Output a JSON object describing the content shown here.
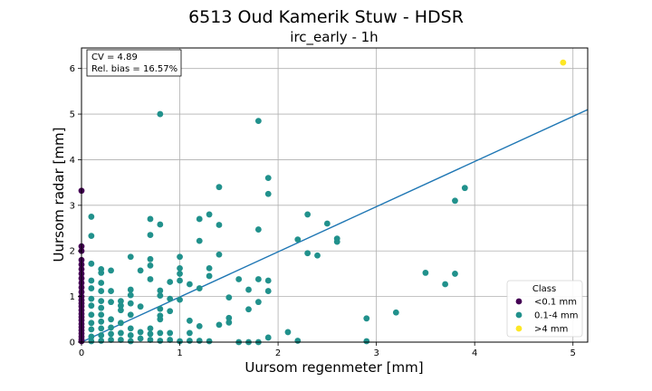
{
  "chart_data": {
    "type": "scatter",
    "title": "6513 Oud Kamerik Stuw - HDSR",
    "subtitle": "irc_early - 1h",
    "xlabel": "Uursom regenmeter [mm]",
    "ylabel": "Uursom radar [mm]",
    "xlim": [
      0,
      5.15
    ],
    "ylim": [
      0,
      6.45
    ],
    "xticks": [
      "0",
      "1",
      "2",
      "3",
      "4",
      "5"
    ],
    "yticks": [
      "0",
      "1",
      "2",
      "3",
      "4",
      "5",
      "6"
    ],
    "grid": true,
    "stats": {
      "cv": "CV = 4.89",
      "bias": "Rel. bias = 16.57%"
    },
    "fit_line": {
      "slope": 0.99,
      "intercept": 0.0,
      "color": "#1f77b4"
    },
    "legend": {
      "title": "Class",
      "position": "lower-right",
      "entries": [
        {
          "label": "<0.1 mm",
          "color": "#440154"
        },
        {
          "label": "0.1-4 mm",
          "color": "#21918c"
        },
        {
          "label": ">4 mm",
          "color": "#fde725"
        }
      ]
    },
    "series": [
      {
        "name": "<0.1 mm",
        "color": "#440154",
        "points": [
          [
            0,
            3.32
          ],
          [
            0,
            2.1
          ],
          [
            0,
            2.0
          ],
          [
            0,
            1.8
          ],
          [
            0,
            1.7
          ],
          [
            0,
            1.6
          ],
          [
            0,
            1.5
          ],
          [
            0,
            1.4
          ],
          [
            0,
            1.3
          ],
          [
            0,
            1.2
          ],
          [
            0,
            1.1
          ],
          [
            0,
            1.0
          ],
          [
            0,
            0.92
          ],
          [
            0,
            0.85
          ],
          [
            0,
            0.78
          ],
          [
            0,
            0.7
          ],
          [
            0,
            0.62
          ],
          [
            0,
            0.55
          ],
          [
            0,
            0.48
          ],
          [
            0,
            0.4
          ],
          [
            0,
            0.33
          ],
          [
            0,
            0.26
          ],
          [
            0,
            0.19
          ],
          [
            0,
            0.12
          ],
          [
            0,
            0.06
          ],
          [
            0,
            0.02
          ]
        ]
      },
      {
        "name": "0.1-4 mm",
        "color": "#21918c",
        "points": [
          [
            0.1,
            2.75
          ],
          [
            0.1,
            2.33
          ],
          [
            0.1,
            1.72
          ],
          [
            0.1,
            1.35
          ],
          [
            0.1,
            1.18
          ],
          [
            0.1,
            0.95
          ],
          [
            0.1,
            0.8
          ],
          [
            0.1,
            0.6
          ],
          [
            0.1,
            0.42
          ],
          [
            0.1,
            0.28
          ],
          [
            0.1,
            0.12
          ],
          [
            0.1,
            0.02
          ],
          [
            0.2,
            1.6
          ],
          [
            0.2,
            1.52
          ],
          [
            0.2,
            1.3
          ],
          [
            0.2,
            1.12
          ],
          [
            0.2,
            0.9
          ],
          [
            0.2,
            0.75
          ],
          [
            0.2,
            0.6
          ],
          [
            0.2,
            0.45
          ],
          [
            0.2,
            0.3
          ],
          [
            0.2,
            0.15
          ],
          [
            0.2,
            0.03
          ],
          [
            0.3,
            1.57
          ],
          [
            0.3,
            1.12
          ],
          [
            0.3,
            0.88
          ],
          [
            0.3,
            0.5
          ],
          [
            0.3,
            0.32
          ],
          [
            0.3,
            0.18
          ],
          [
            0.3,
            0.05
          ],
          [
            0.4,
            0.9
          ],
          [
            0.4,
            0.8
          ],
          [
            0.4,
            0.7
          ],
          [
            0.4,
            0.42
          ],
          [
            0.4,
            0.2
          ],
          [
            0.4,
            0.05
          ],
          [
            0.5,
            1.87
          ],
          [
            0.5,
            1.15
          ],
          [
            0.5,
            1.03
          ],
          [
            0.5,
            0.85
          ],
          [
            0.5,
            0.6
          ],
          [
            0.5,
            0.3
          ],
          [
            0.5,
            0.15
          ],
          [
            0.5,
            0.02
          ],
          [
            0.6,
            1.57
          ],
          [
            0.6,
            0.78
          ],
          [
            0.6,
            0.22
          ],
          [
            0.6,
            0.08
          ],
          [
            0.7,
            2.7
          ],
          [
            0.7,
            2.35
          ],
          [
            0.7,
            1.82
          ],
          [
            0.7,
            1.68
          ],
          [
            0.7,
            1.38
          ],
          [
            0.7,
            0.3
          ],
          [
            0.7,
            0.18
          ],
          [
            0.7,
            0.05
          ],
          [
            0.8,
            5.0
          ],
          [
            0.8,
            2.58
          ],
          [
            0.8,
            1.13
          ],
          [
            0.8,
            1.02
          ],
          [
            0.8,
            0.73
          ],
          [
            0.8,
            0.58
          ],
          [
            0.8,
            0.5
          ],
          [
            0.8,
            0.2
          ],
          [
            0.8,
            0.03
          ],
          [
            0.9,
            1.32
          ],
          [
            0.9,
            0.95
          ],
          [
            0.9,
            0.68
          ],
          [
            0.9,
            0.2
          ],
          [
            0.9,
            0.05
          ],
          [
            1.0,
            1.87
          ],
          [
            1.0,
            1.62
          ],
          [
            1.0,
            1.5
          ],
          [
            1.0,
            1.35
          ],
          [
            1.0,
            0.93
          ],
          [
            1.0,
            0.02
          ],
          [
            1.1,
            1.27
          ],
          [
            1.1,
            0.47
          ],
          [
            1.1,
            0.2
          ],
          [
            1.1,
            0.03
          ],
          [
            1.2,
            2.7
          ],
          [
            1.2,
            2.22
          ],
          [
            1.2,
            1.18
          ],
          [
            1.2,
            0.35
          ],
          [
            1.2,
            0.03
          ],
          [
            1.3,
            2.8
          ],
          [
            1.3,
            1.62
          ],
          [
            1.3,
            1.45
          ],
          [
            1.3,
            0.02
          ],
          [
            1.4,
            3.4
          ],
          [
            1.4,
            2.57
          ],
          [
            1.4,
            1.92
          ],
          [
            1.4,
            0.38
          ],
          [
            1.5,
            0.98
          ],
          [
            1.5,
            0.53
          ],
          [
            1.5,
            0.43
          ],
          [
            1.6,
            1.38
          ],
          [
            1.6,
            0.0
          ],
          [
            1.7,
            1.15
          ],
          [
            1.7,
            0.72
          ],
          [
            1.7,
            0.0
          ],
          [
            1.8,
            4.85
          ],
          [
            1.8,
            2.47
          ],
          [
            1.8,
            1.38
          ],
          [
            1.8,
            0.88
          ],
          [
            1.8,
            0.0
          ],
          [
            1.9,
            3.6
          ],
          [
            1.9,
            3.25
          ],
          [
            1.9,
            1.35
          ],
          [
            1.9,
            1.12
          ],
          [
            1.9,
            0.1
          ],
          [
            2.1,
            0.22
          ],
          [
            2.2,
            2.25
          ],
          [
            2.2,
            0.03
          ],
          [
            2.3,
            2.8
          ],
          [
            2.3,
            1.95
          ],
          [
            2.4,
            1.9
          ],
          [
            2.5,
            2.6
          ],
          [
            2.6,
            2.27
          ],
          [
            2.6,
            2.2
          ],
          [
            2.9,
            0.52
          ],
          [
            2.9,
            0.02
          ],
          [
            3.2,
            0.65
          ],
          [
            3.5,
            1.52
          ],
          [
            3.7,
            1.27
          ],
          [
            3.8,
            3.1
          ],
          [
            3.8,
            1.5
          ],
          [
            3.9,
            3.38
          ]
        ]
      },
      {
        "name": ">4 mm",
        "color": "#fde725",
        "points": [
          [
            4.9,
            6.13
          ]
        ]
      }
    ]
  }
}
